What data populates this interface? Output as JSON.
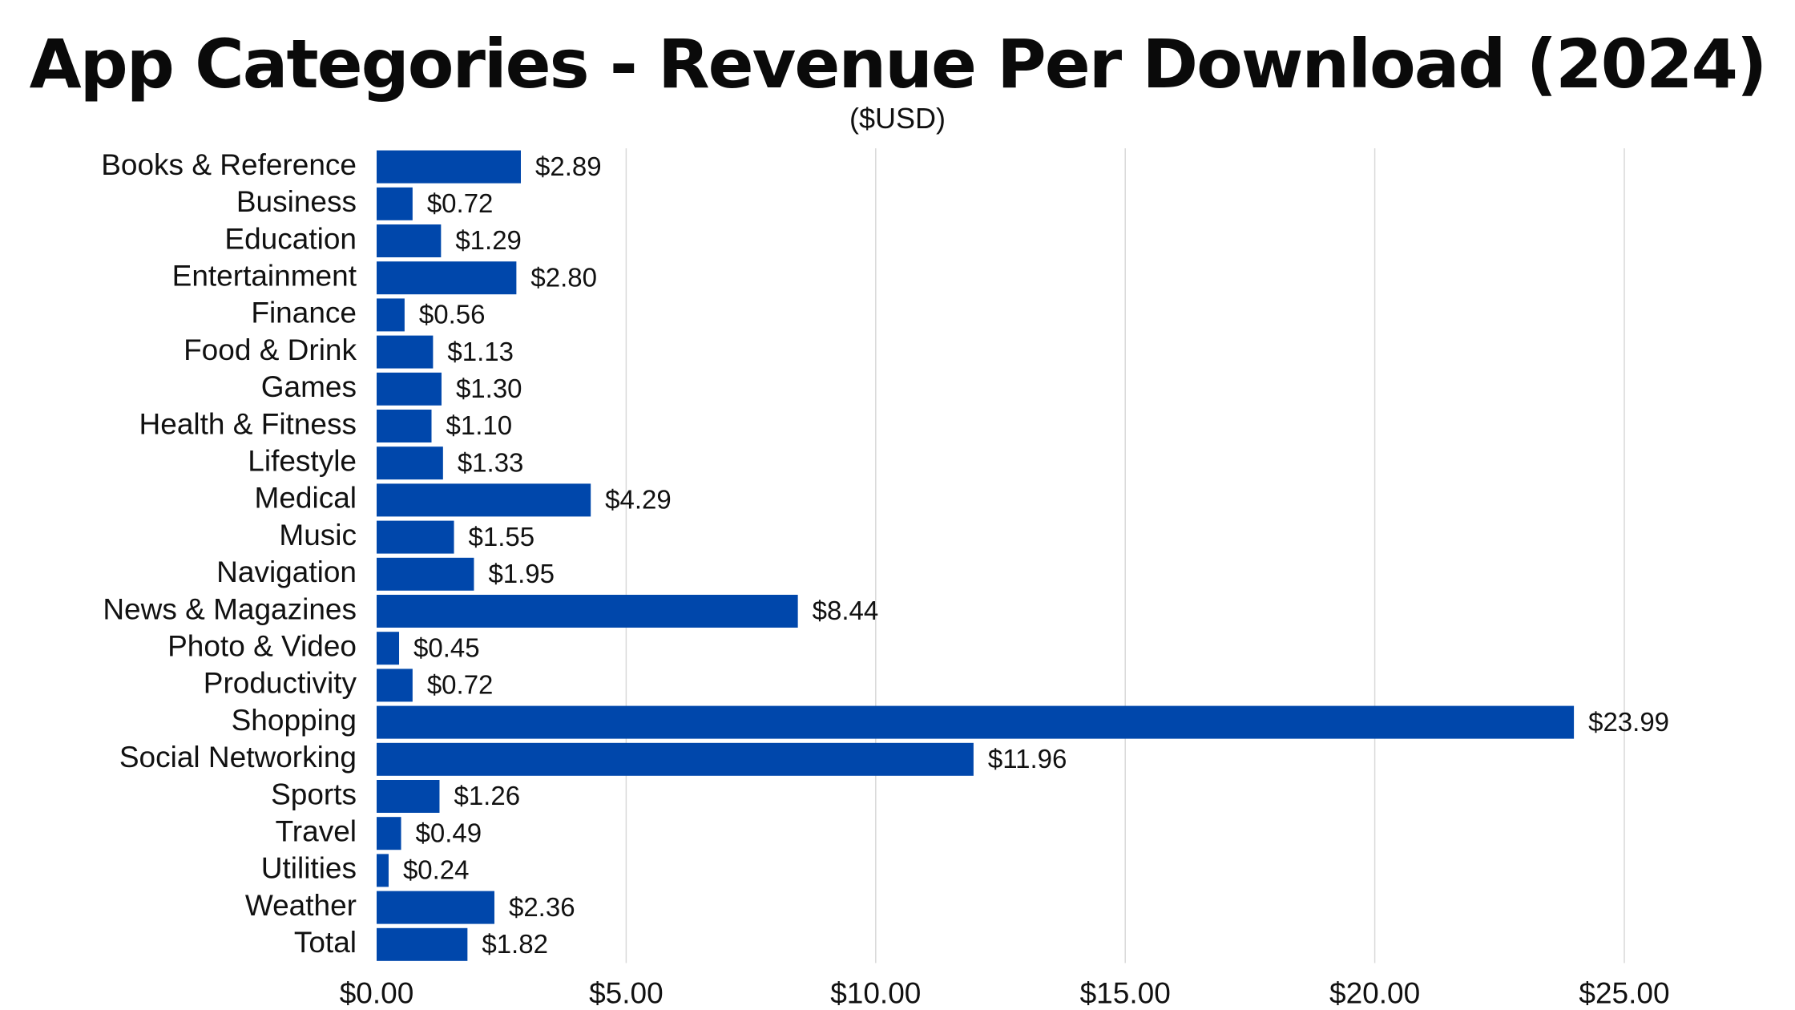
{
  "chart_data": {
    "type": "bar",
    "orientation": "horizontal",
    "title": "App Categories - Revenue Per Download (2024)",
    "subtitle": "($USD)",
    "xlabel": "",
    "ylabel": "",
    "categories": [
      "Books & Reference",
      "Business",
      "Education",
      "Entertainment",
      "Finance",
      "Food & Drink",
      "Games",
      "Health & Fitness",
      "Lifestyle",
      "Medical",
      "Music",
      "Navigation",
      "News & Magazines",
      "Photo & Video",
      "Productivity",
      "Shopping",
      "Social Networking",
      "Sports",
      "Travel",
      "Utilities",
      "Weather",
      "Total"
    ],
    "values": [
      2.89,
      0.72,
      1.29,
      2.8,
      0.56,
      1.13,
      1.3,
      1.1,
      1.33,
      4.29,
      1.55,
      1.95,
      8.44,
      0.45,
      0.72,
      23.99,
      11.96,
      1.26,
      0.49,
      0.24,
      2.36,
      1.82
    ],
    "data_labels": [
      "$2.89",
      "$0.72",
      "$1.29",
      "$2.80",
      "$0.56",
      "$1.13",
      "$1.30",
      "$1.10",
      "$1.33",
      "$4.29",
      "$1.55",
      "$1.95",
      "$8.44",
      "$0.45",
      "$0.72",
      "$23.99",
      "$11.96",
      "$1.26",
      "$0.49",
      "$0.24",
      "$2.36",
      "$1.82"
    ],
    "x_ticks": [
      0,
      5,
      10,
      15,
      20,
      25
    ],
    "x_tick_labels": [
      "$0.00",
      "$5.00",
      "$10.00",
      "$15.00",
      "$20.00",
      "$25.00"
    ],
    "xlim": [
      0,
      25
    ],
    "grid": true,
    "legend": "none",
    "bar_color": "#0047AB",
    "grid_color": "#d9d9d9"
  }
}
